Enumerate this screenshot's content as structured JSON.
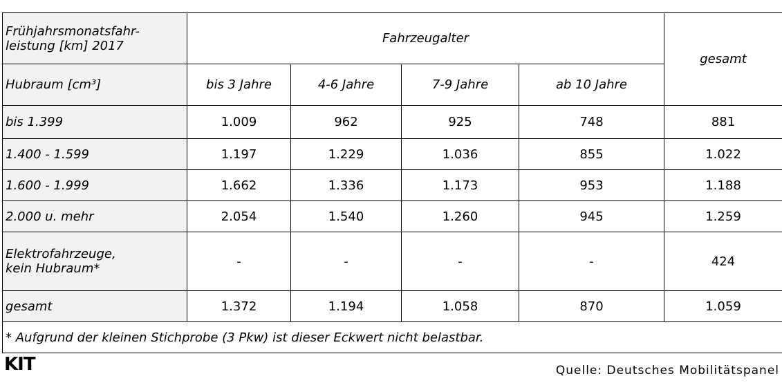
{
  "header": {
    "title_lines": [
      "Frühjahrsmonatsfahr-",
      "leistung [km] 2017"
    ],
    "group": "Fahrzeugalter",
    "total": "gesamt",
    "row_header": "Hubraum [cm³]",
    "columns": [
      "bis 3 Jahre",
      "4-6 Jahre",
      "7-9 Jahre",
      "ab 10 Jahre"
    ]
  },
  "table": {
    "rows": [
      {
        "label": [
          "bis 1.399"
        ],
        "values": [
          "1.009",
          "962",
          "925",
          "748",
          "881"
        ]
      },
      {
        "label": [
          "1.400 - 1.599"
        ],
        "values": [
          "1.197",
          "1.229",
          "1.036",
          "855",
          "1.022"
        ]
      },
      {
        "label": [
          "1.600 - 1.999"
        ],
        "values": [
          "1.662",
          "1.336",
          "1.173",
          "953",
          "1.188"
        ]
      },
      {
        "label": [
          "2.000 u. mehr"
        ],
        "values": [
          "2.054",
          "1.540",
          "1.260",
          "945",
          "1.259"
        ]
      },
      {
        "label": [
          "Elektrofahrzeuge,",
          "kein Hubraum*"
        ],
        "values": [
          "-",
          "-",
          "-",
          "-",
          "424"
        ]
      },
      {
        "label": [
          "gesamt"
        ],
        "values": [
          "1.372",
          "1.194",
          "1.058",
          "870",
          "1.059"
        ]
      }
    ]
  },
  "footnote": "* Aufgrund der kleinen Stichprobe (3 Pkw) ist dieser Eckwert nicht belastbar.",
  "logo": "KIT",
  "source": "Quelle: Deutsches Mobilitätspanel"
}
